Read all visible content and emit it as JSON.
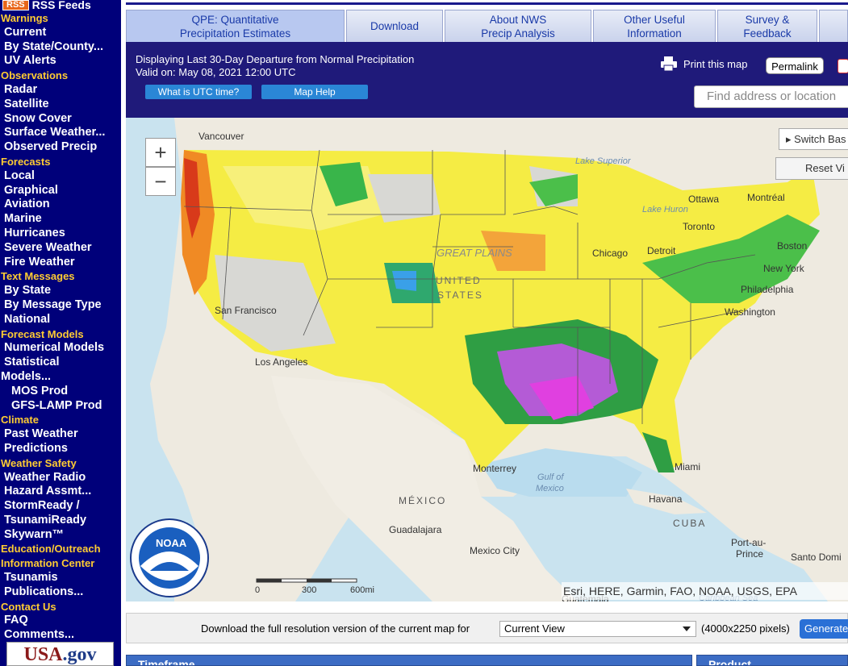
{
  "sidebar": {
    "rss_badge": "RSS",
    "rss_label": "RSS Feeds",
    "items": [
      {
        "kind": "sec",
        "label": "Warnings"
      },
      {
        "kind": "it",
        "label": "Current"
      },
      {
        "kind": "it",
        "label": "By State/County..."
      },
      {
        "kind": "it",
        "label": "UV Alerts"
      },
      {
        "kind": "sec",
        "label": "Observations"
      },
      {
        "kind": "it",
        "label": "Radar"
      },
      {
        "kind": "it",
        "label": "Satellite"
      },
      {
        "kind": "it",
        "label": "Snow Cover"
      },
      {
        "kind": "it",
        "label": "Surface Weather..."
      },
      {
        "kind": "it",
        "label": "Observed Precip"
      },
      {
        "kind": "sec",
        "label": "Forecasts"
      },
      {
        "kind": "it",
        "label": "Local"
      },
      {
        "kind": "it",
        "label": "Graphical"
      },
      {
        "kind": "it",
        "label": "Aviation"
      },
      {
        "kind": "it",
        "label": "Marine"
      },
      {
        "kind": "it",
        "label": "Hurricanes"
      },
      {
        "kind": "it",
        "label": "Severe Weather"
      },
      {
        "kind": "it",
        "label": "Fire Weather"
      },
      {
        "kind": "sec",
        "label": "Text Messages"
      },
      {
        "kind": "it",
        "label": "By State"
      },
      {
        "kind": "it",
        "label": "By Message Type"
      },
      {
        "kind": "it",
        "label": "National"
      },
      {
        "kind": "sec",
        "label": "Forecast Models"
      },
      {
        "kind": "it",
        "label": "Numerical Models"
      },
      {
        "kind": "it",
        "label": "Statistical"
      },
      {
        "kind": "flush",
        "label": "Models..."
      },
      {
        "kind": "sub",
        "label": "MOS Prod"
      },
      {
        "kind": "sub",
        "label": "GFS-LAMP Prod"
      },
      {
        "kind": "sec",
        "label": "Climate"
      },
      {
        "kind": "it",
        "label": "Past Weather"
      },
      {
        "kind": "it",
        "label": "Predictions"
      },
      {
        "kind": "sec",
        "label": "Weather Safety"
      },
      {
        "kind": "it",
        "label": "Weather Radio"
      },
      {
        "kind": "it",
        "label": "Hazard Assmt..."
      },
      {
        "kind": "it",
        "label": "StormReady /"
      },
      {
        "kind": "it",
        "label": "TsunamiReady"
      },
      {
        "kind": "it",
        "label": "Skywarn™"
      },
      {
        "kind": "sec",
        "label": "Education/Outreach"
      },
      {
        "kind": "sec",
        "label": "Information Center"
      },
      {
        "kind": "it",
        "label": "Tsunamis"
      },
      {
        "kind": "it",
        "label": "Publications..."
      },
      {
        "kind": "sec",
        "label": "Contact Us"
      },
      {
        "kind": "it",
        "label": "FAQ"
      },
      {
        "kind": "it",
        "label": "Comments..."
      }
    ],
    "usagov_a": "USA",
    "usagov_b": ".gov"
  },
  "tabs": [
    {
      "line1": "QPE: Quantitative",
      "line2": "Precipitation Estimates"
    },
    {
      "line1": "Download",
      "line2": ""
    },
    {
      "line1": "About NWS",
      "line2": "Precip Analysis"
    },
    {
      "line1": "Other Useful",
      "line2": "Information"
    },
    {
      "line1": "Survey &",
      "line2": "Feedback"
    }
  ],
  "header": {
    "display_text": "Displaying Last 30-Day Departure from Normal Precipitation",
    "valid_text": "Valid on: May 08, 2021 12:00 UTC",
    "utc_button": "What is UTC time?",
    "help_button": "Map Help",
    "print_label": "Print this map",
    "permalink_label": "Permalink",
    "search_placeholder": "Find address or location"
  },
  "map": {
    "zoom_in": "+",
    "zoom_out": "−",
    "switch_basemap": "Switch Bas",
    "reset_view": "Reset Vi",
    "attribution": "Esri, HERE, Garmin, FAO, NOAA, USGS, EPA",
    "scale_0": "0",
    "scale_300": "300",
    "scale_600": "600mi",
    "noaa_text": "NOAA",
    "labels": {
      "vancouver": "Vancouver",
      "lake_superior": "Lake Superior",
      "ottawa": "Ottawa",
      "montreal": "Montréal",
      "lake_huron": "Lake Huron",
      "toronto": "Toronto",
      "boston": "Boston",
      "great_plains": "GREAT PLAINS",
      "chicago": "Chicago",
      "detroit": "Detroit",
      "united": "UNITED",
      "states": "STATES",
      "new_york": "New York",
      "philadelphia": "Philadelphia",
      "washington": "Washington",
      "san_francisco": "San Francisco",
      "los_angeles": "Los Angeles",
      "monterrey": "Monterrey",
      "miami": "Miami",
      "gulf_of_mexico_1": "Gulf of",
      "gulf_of_mexico_2": "Mexico",
      "mexico": "MÉXICO",
      "havana": "Havana",
      "cuba": "CUBA",
      "guadalajara": "Guadalajara",
      "mexico_city": "Mexico City",
      "port_au_prince_1": "Port-au-",
      "port_au_prince_2": "Prince",
      "santo_domingo": "Santo Domi",
      "guatemala": "Guatemala",
      "caribbean_sea": "Caribbean Sea"
    }
  },
  "download": {
    "text": "Download the full resolution version of the current map for",
    "select_value": "Current View",
    "pixels_text": "(4000x2250 pixels)",
    "generate_label": "Generate"
  },
  "bottom": {
    "timeframe": "Timeframe",
    "product": "Product"
  },
  "colors": {
    "sidebar_bg": "#00007a",
    "section_label": "#ffcc33",
    "header_bg": "#1f1a7a",
    "button_blue": "#2a86d6"
  }
}
